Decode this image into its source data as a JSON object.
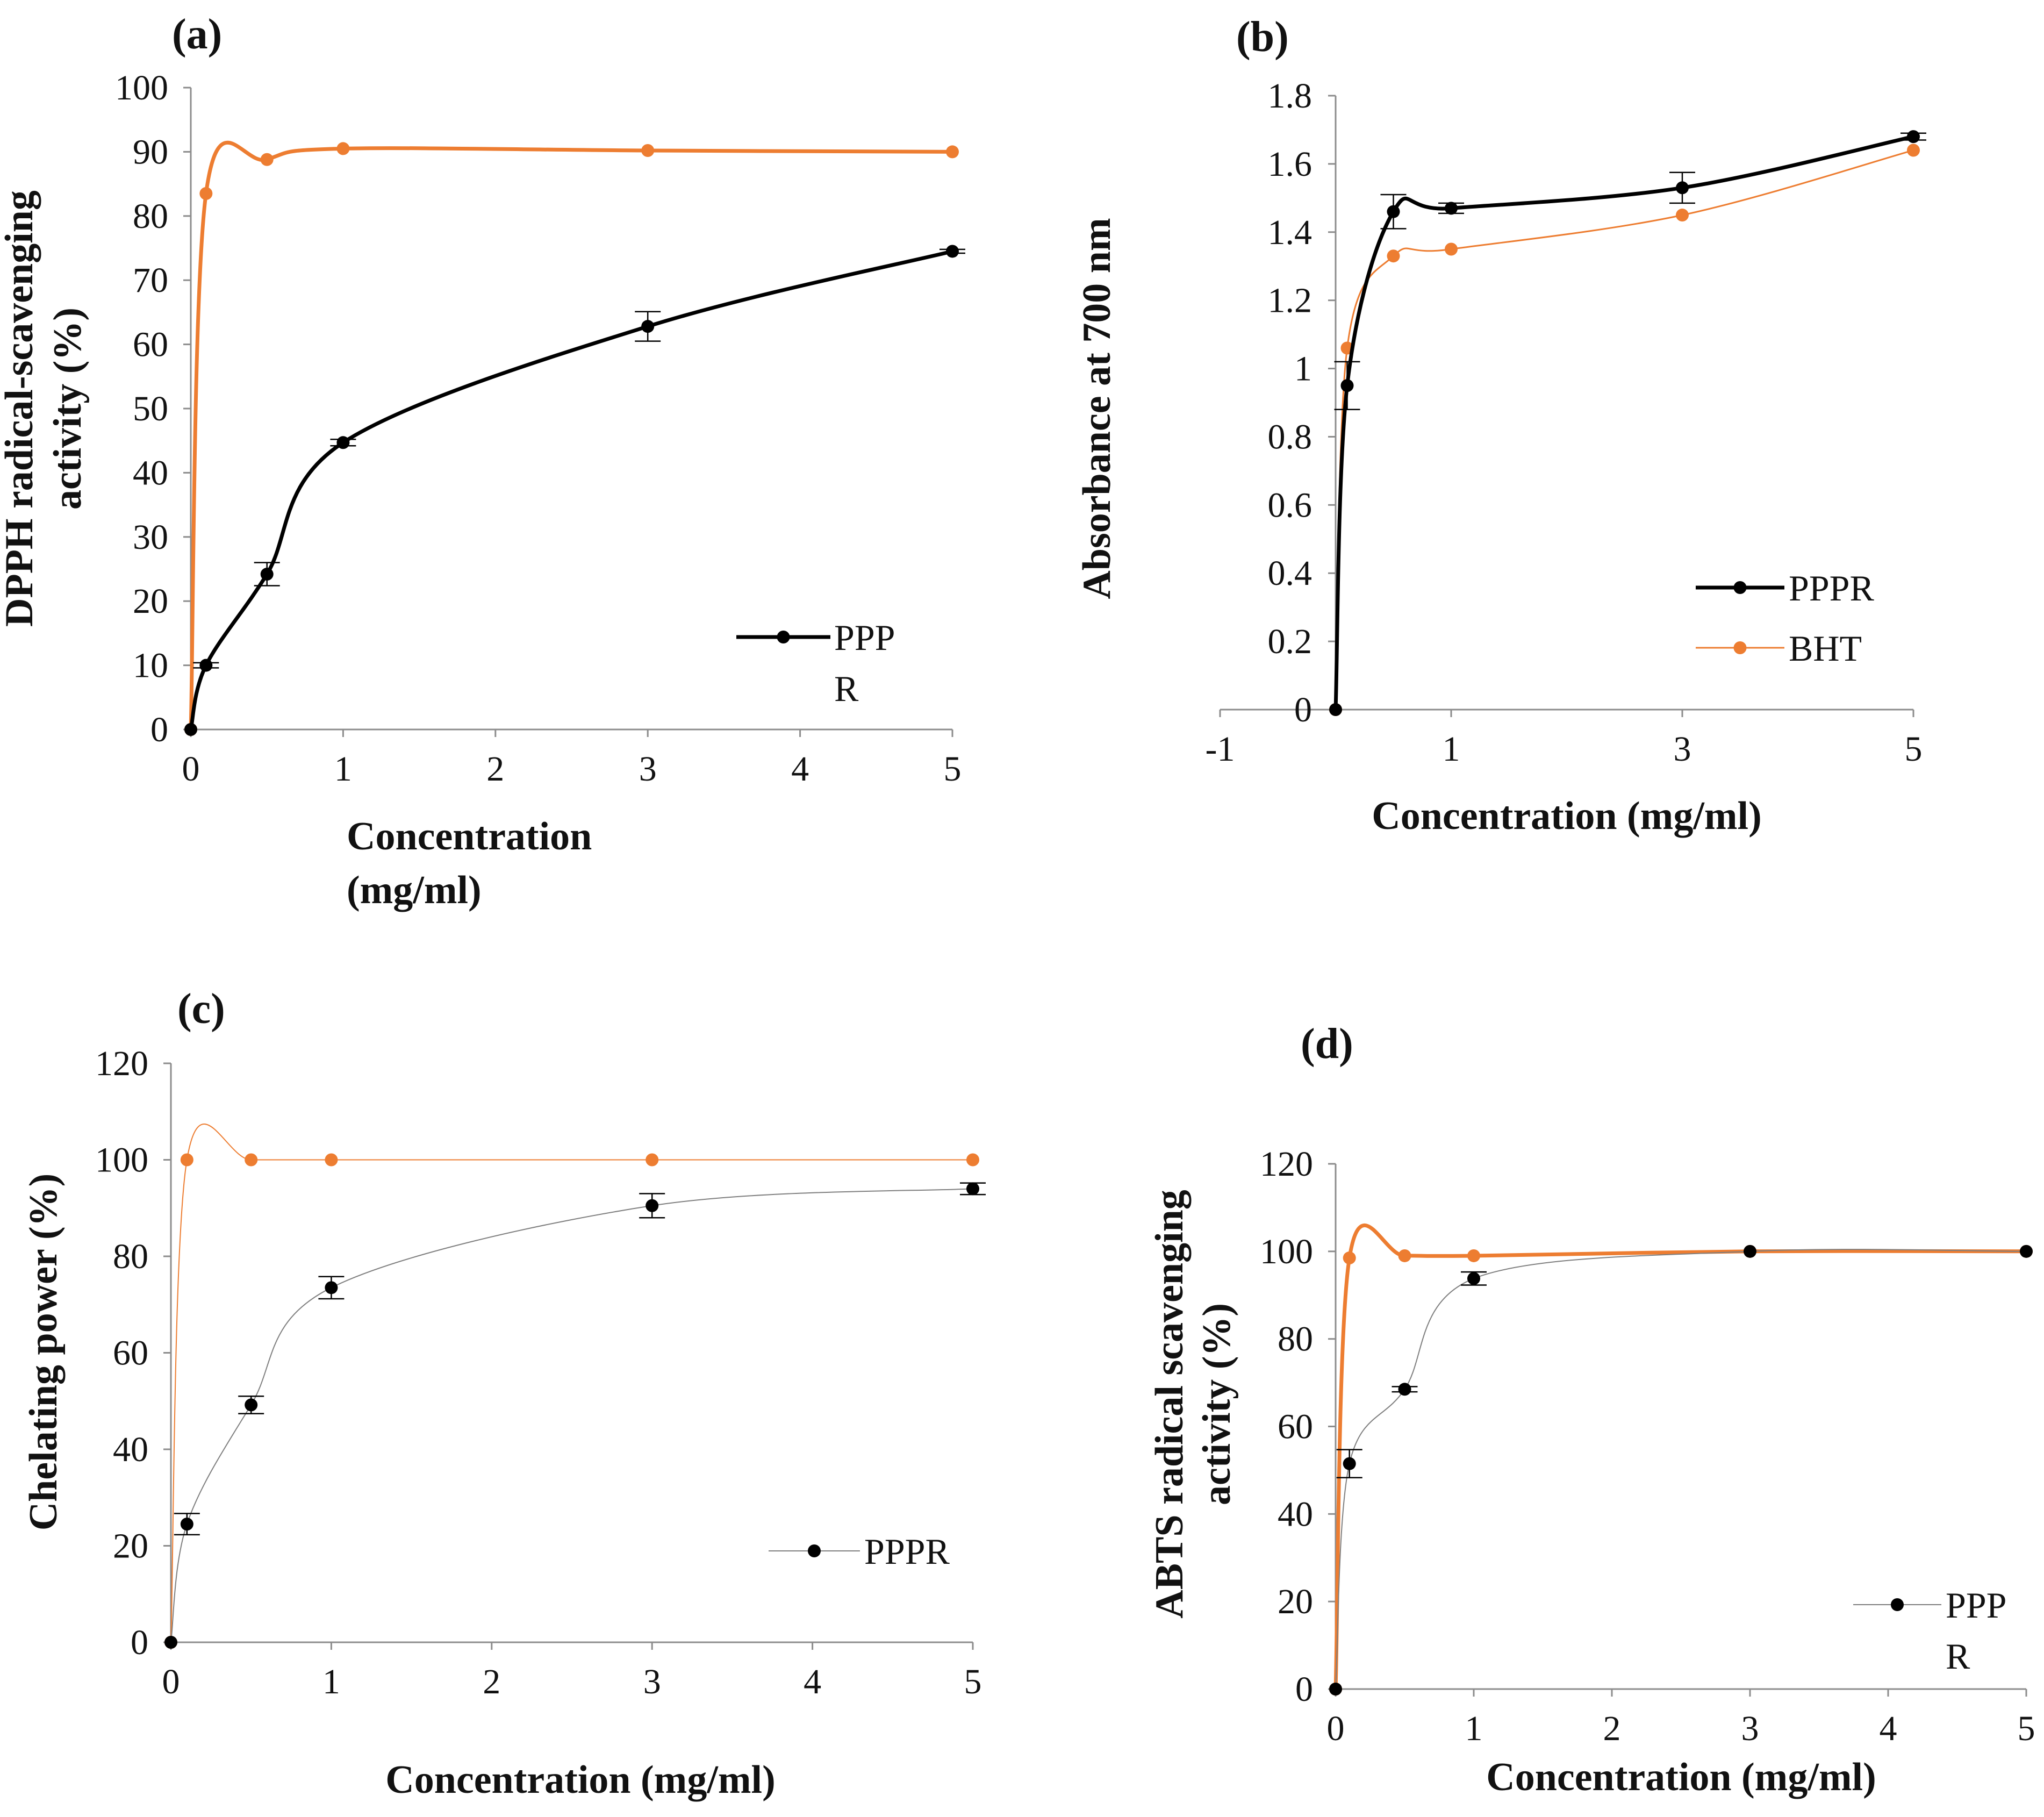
{
  "figure": {
    "panels": [
      "(a)",
      "(b)",
      "(c)",
      "(d)"
    ]
  },
  "colors": {
    "pppr": "#000000",
    "reference": "#ed7d31",
    "axis": "#8c8c8c",
    "text": "#111111"
  },
  "chart_data": [
    {
      "id": "a",
      "type": "line",
      "label": "(a)",
      "title": "",
      "xlabel_lines": [
        "Concentration",
        "(mg/ml)"
      ],
      "ylabel_lines": [
        "DPPH radical-scavenging",
        "activity (%)"
      ],
      "xlim": [
        0,
        5
      ],
      "ylim": [
        0,
        100
      ],
      "xticks": [
        0,
        1,
        2,
        3,
        4,
        5
      ],
      "yticks": [
        0,
        10,
        20,
        30,
        40,
        50,
        60,
        70,
        80,
        90,
        100
      ],
      "grid": false,
      "legend_position": "bottom-right",
      "legend_lines": [
        "PPP",
        "R"
      ],
      "series": [
        {
          "name": "PPPR",
          "color": "#000000",
          "x": [
            0,
            0.1,
            0.5,
            1,
            3,
            5
          ],
          "values": [
            0,
            10,
            24.2,
            44.7,
            62.8,
            74.5
          ],
          "errors": [
            0,
            0.4,
            1.8,
            0.5,
            2.3,
            0.3
          ],
          "in_legend": true
        },
        {
          "name": "reference",
          "color": "#ed7d31",
          "x": [
            0,
            0.1,
            0.5,
            1,
            3,
            5
          ],
          "values": [
            0,
            83.5,
            88.8,
            90.5,
            90.2,
            90.0
          ],
          "errors": [
            0,
            0,
            0,
            0,
            0,
            0
          ],
          "in_legend": false
        }
      ]
    },
    {
      "id": "b",
      "type": "line",
      "label": "(b)",
      "title": "",
      "xlabel_lines": [
        "Concentration (mg/ml)"
      ],
      "ylabel_lines": [
        "Absorbance at 700 nm"
      ],
      "xlim": [
        -1,
        5
      ],
      "ylim": [
        0,
        1.8
      ],
      "xticks": [
        -1,
        1,
        3,
        5
      ],
      "ytick_labels": [
        "0",
        "0.2",
        "0.4",
        "0.6",
        "0.8",
        "1",
        "1.2",
        "1.4",
        "1.6",
        "1.8"
      ],
      "grid": false,
      "legend_position": "bottom-right",
      "series": [
        {
          "name": "PPPR",
          "color": "#000000",
          "x": [
            0,
            0.1,
            0.5,
            1,
            3,
            5
          ],
          "values": [
            0,
            0.95,
            1.46,
            1.47,
            1.53,
            1.68
          ],
          "errors": [
            0,
            0.07,
            0.05,
            0.015,
            0.045,
            0.01
          ],
          "in_legend": true
        },
        {
          "name": "BHT",
          "color": "#ed7d31",
          "x": [
            0,
            0.1,
            0.5,
            1,
            3,
            5
          ],
          "values": [
            0,
            1.06,
            1.33,
            1.35,
            1.45,
            1.64
          ],
          "errors": [
            0,
            0,
            0,
            0,
            0,
            0
          ],
          "in_legend": true
        }
      ]
    },
    {
      "id": "c",
      "type": "line",
      "label": "(c)",
      "title": "",
      "xlabel_lines": [
        "Concentration (mg/ml)"
      ],
      "ylabel_lines": [
        "Chelating power (%)"
      ],
      "xlim": [
        0,
        5
      ],
      "ylim": [
        0,
        120
      ],
      "xticks": [
        0,
        1,
        2,
        3,
        4,
        5
      ],
      "yticks": [
        0,
        20,
        40,
        60,
        80,
        100,
        120
      ],
      "grid": false,
      "legend_position": "right",
      "legend_lines": [
        "PPPR"
      ],
      "series": [
        {
          "name": "PPPR",
          "color": "#000000",
          "x": [
            0,
            0.1,
            0.5,
            1,
            3,
            5
          ],
          "values": [
            0,
            24.5,
            49.2,
            73.5,
            90.5,
            94
          ],
          "errors": [
            0,
            2.2,
            1.8,
            2.3,
            2.5,
            1.2
          ],
          "in_legend": true
        },
        {
          "name": "reference",
          "color": "#ed7d31",
          "x": [
            0,
            0.1,
            0.5,
            1,
            3,
            5
          ],
          "values": [
            0,
            100,
            100,
            100,
            100,
            100
          ],
          "errors": [
            0,
            0,
            0,
            0,
            0,
            0
          ],
          "in_legend": false
        }
      ]
    },
    {
      "id": "d",
      "type": "line",
      "label": "(d)",
      "title": "",
      "xlabel_lines": [
        "Concentration (mg/ml)"
      ],
      "ylabel_lines": [
        "ABTS radical scavenging",
        "activity (%)"
      ],
      "xlim": [
        0,
        5
      ],
      "ylim": [
        0,
        120
      ],
      "xticks": [
        0,
        1,
        2,
        3,
        4,
        5
      ],
      "yticks": [
        0,
        20,
        40,
        60,
        80,
        100,
        120
      ],
      "grid": false,
      "legend_position": "bottom-right",
      "legend_lines": [
        "PPP",
        "R"
      ],
      "series": [
        {
          "name": "PPPR",
          "color": "#000000",
          "x": [
            0,
            0.1,
            0.5,
            1,
            3,
            5
          ],
          "values": [
            0,
            51.5,
            68.5,
            93.8,
            100,
            100
          ],
          "errors": [
            0,
            3.2,
            0.6,
            1.5,
            0,
            0
          ],
          "in_legend": true
        },
        {
          "name": "reference",
          "color": "#ed7d31",
          "x": [
            0,
            0.1,
            0.5,
            1,
            3,
            5
          ],
          "values": [
            0,
            98.5,
            99,
            99,
            100,
            100
          ],
          "errors": [
            0,
            0,
            0,
            0,
            0,
            0
          ],
          "in_legend": false
        }
      ]
    }
  ]
}
